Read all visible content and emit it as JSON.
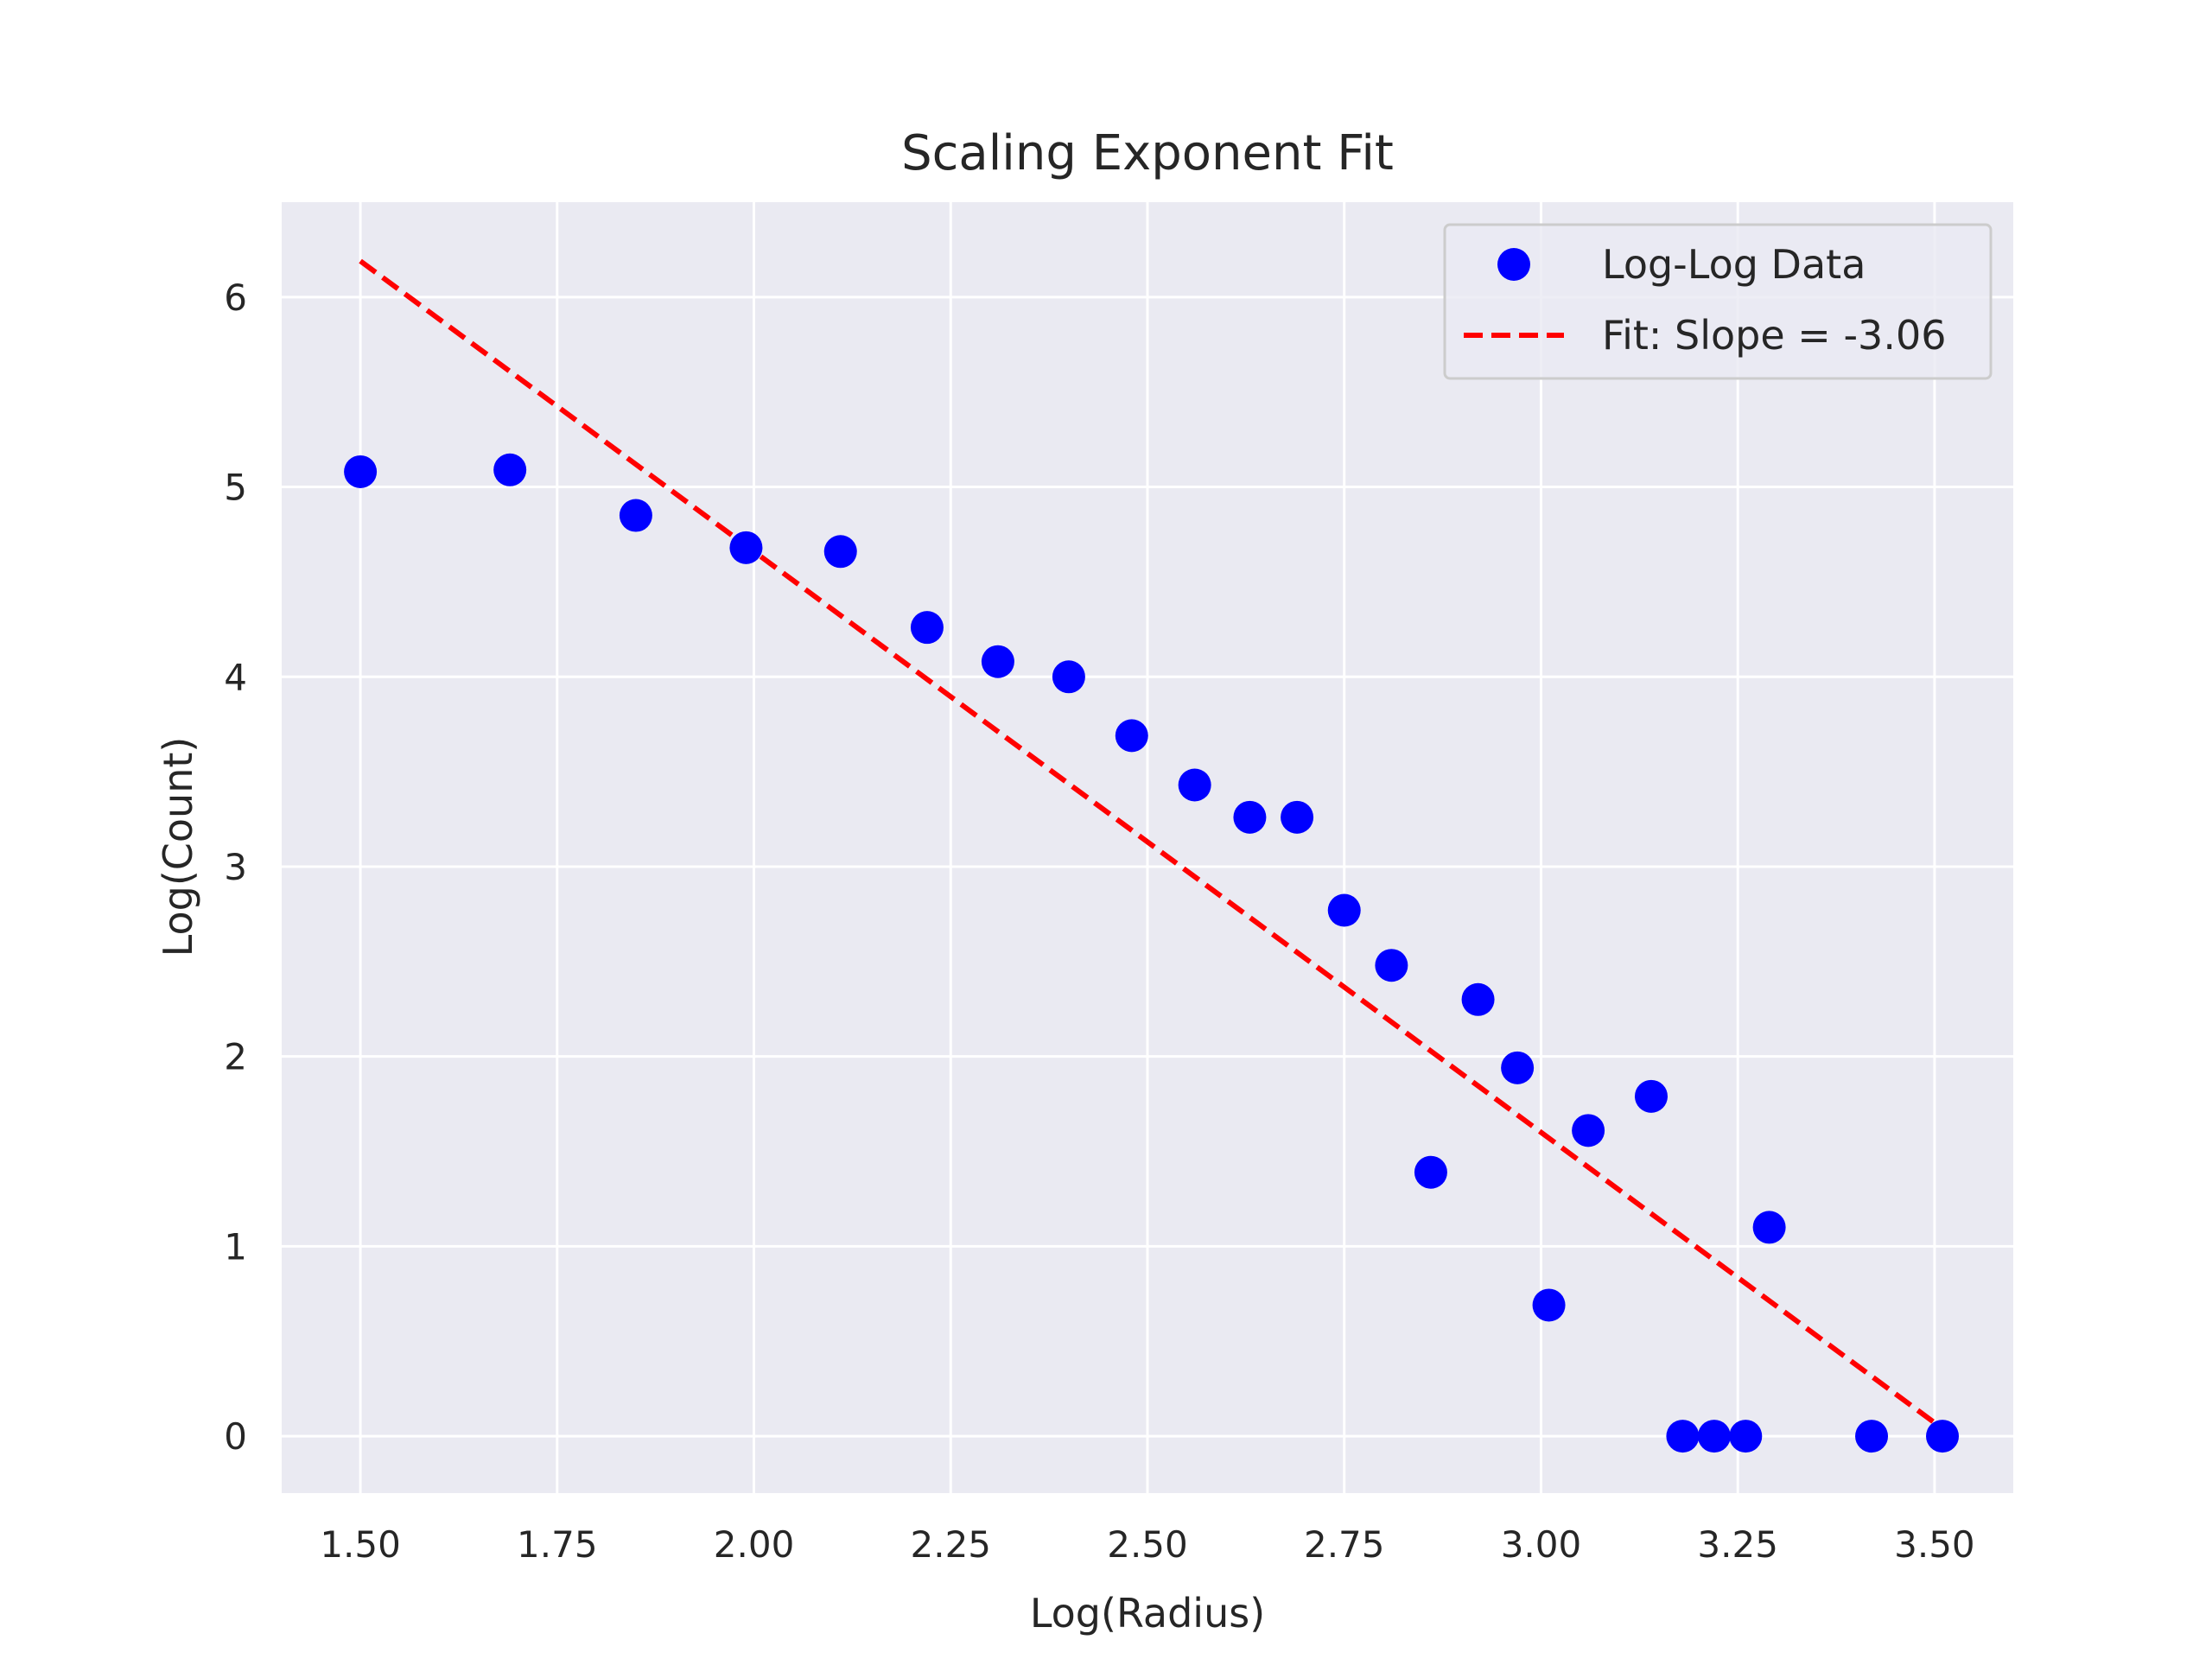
{
  "chart_data": {
    "type": "scatter",
    "title": "Scaling Exponent Fit",
    "xlabel": "Log(Radius)",
    "ylabel": "Log(Count)",
    "xlim": [
      1.4,
      3.6
    ],
    "ylim": [
      -0.3,
      6.5
    ],
    "xticks": [
      1.5,
      1.75,
      2.0,
      2.25,
      2.5,
      2.75,
      3.0,
      3.25,
      3.5
    ],
    "xtick_labels": [
      "1.50",
      "1.75",
      "2.00",
      "2.25",
      "2.50",
      "2.75",
      "3.00",
      "3.25",
      "3.50"
    ],
    "yticks": [
      0,
      1,
      2,
      3,
      4,
      5,
      6
    ],
    "ytick_labels": [
      "0",
      "1",
      "2",
      "3",
      "4",
      "5",
      "6"
    ],
    "grid": true,
    "legend_position": "top-right",
    "series": [
      {
        "name": "Log-Log Data",
        "kind": "scatter",
        "color": "#0000ff",
        "x": [
          1.5,
          1.69,
          1.85,
          1.99,
          2.11,
          2.22,
          2.31,
          2.4,
          2.48,
          2.56,
          2.63,
          2.69,
          2.75,
          2.81,
          2.86,
          2.92,
          2.97,
          3.01,
          3.06,
          3.14,
          3.18,
          3.22,
          3.26,
          3.29,
          3.42,
          3.51
        ],
        "y": [
          5.08,
          5.09,
          4.85,
          4.68,
          4.66,
          4.26,
          4.08,
          4.0,
          3.69,
          3.43,
          3.26,
          3.26,
          2.77,
          2.48,
          1.39,
          2.3,
          1.94,
          0.69,
          1.61,
          1.79,
          0.0,
          0.0,
          0.0,
          1.1,
          0.0,
          0.0
        ]
      },
      {
        "name": "Fit: Slope = -3.06",
        "kind": "line",
        "style": "dashed",
        "color": "#ff0000",
        "x": [
          1.5,
          3.51
        ],
        "y": [
          6.19,
          0.04
        ]
      }
    ]
  }
}
